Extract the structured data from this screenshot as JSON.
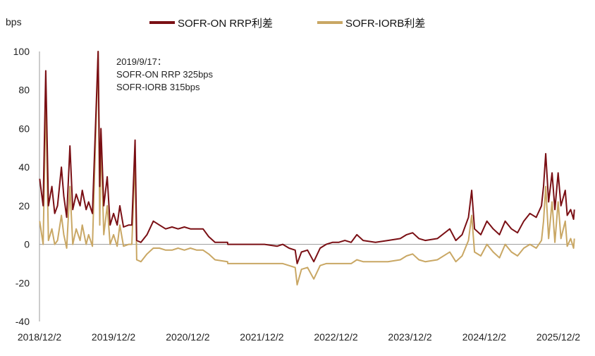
{
  "chart_data": {
    "type": "line",
    "ylabel": "bps",
    "ylim": [
      -40,
      100
    ],
    "yticks": [
      100,
      80,
      60,
      40,
      20,
      0,
      -20,
      -40
    ],
    "xlim": [
      "2018-12-02",
      "2026-02-20"
    ],
    "xticks": [
      "2018/12/2",
      "2019/12/2",
      "2020/12/2",
      "2021/12/2",
      "2022/12/2",
      "2023/12/2",
      "2024/12/2",
      "2025/12/2"
    ],
    "legend_position": "top",
    "annotation": [
      "2019/9/17：",
      "SOFR-ON RRP 325bps",
      "SOFR-IORB 315bps"
    ],
    "colors": {
      "on_rrp": "#7a0f14",
      "iorb": "#c9a764",
      "axis": "#999999"
    },
    "series": [
      {
        "name": "SOFR-ON  RRP利差",
        "key": "on_rrp",
        "points": [
          [
            "2018-12-03",
            34
          ],
          [
            "2018-12-20",
            20
          ],
          [
            "2019-01-02",
            90
          ],
          [
            "2019-01-15",
            20
          ],
          [
            "2019-02-01",
            30
          ],
          [
            "2019-02-15",
            16
          ],
          [
            "2019-03-01",
            20
          ],
          [
            "2019-03-20",
            40
          ],
          [
            "2019-04-01",
            25
          ],
          [
            "2019-04-15",
            14
          ],
          [
            "2019-05-01",
            51
          ],
          [
            "2019-05-15",
            18
          ],
          [
            "2019-06-01",
            26
          ],
          [
            "2019-06-20",
            20
          ],
          [
            "2019-07-01",
            28
          ],
          [
            "2019-07-20",
            18
          ],
          [
            "2019-08-01",
            22
          ],
          [
            "2019-08-20",
            16
          ],
          [
            "2019-09-17",
            100
          ],
          [
            "2019-09-25",
            30
          ],
          [
            "2019-10-01",
            60
          ],
          [
            "2019-10-15",
            20
          ],
          [
            "2019-11-01",
            35
          ],
          [
            "2019-11-15",
            10
          ],
          [
            "2019-12-02",
            16
          ],
          [
            "2019-12-20",
            10
          ],
          [
            "2020-01-02",
            20
          ],
          [
            "2020-01-20",
            9
          ],
          [
            "2020-02-15",
            10
          ],
          [
            "2020-03-01",
            10
          ],
          [
            "2020-03-17",
            54
          ],
          [
            "2020-03-25",
            2
          ],
          [
            "2020-04-15",
            1
          ],
          [
            "2020-05-15",
            5
          ],
          [
            "2020-06-15",
            12
          ],
          [
            "2020-07-15",
            10
          ],
          [
            "2020-08-15",
            8
          ],
          [
            "2020-09-15",
            9
          ],
          [
            "2020-10-15",
            8
          ],
          [
            "2020-11-15",
            9
          ],
          [
            "2020-12-15",
            8
          ],
          [
            "2021-01-15",
            8
          ],
          [
            "2021-02-15",
            8
          ],
          [
            "2021-03-15",
            4
          ],
          [
            "2021-04-15",
            1
          ],
          [
            "2021-06-16",
            1
          ],
          [
            "2021-06-17",
            0
          ],
          [
            "2021-09-15",
            0
          ],
          [
            "2021-12-15",
            0
          ],
          [
            "2022-02-15",
            -1
          ],
          [
            "2022-03-15",
            0
          ],
          [
            "2022-04-15",
            -2
          ],
          [
            "2022-05-15",
            -3
          ],
          [
            "2022-05-25",
            -10
          ],
          [
            "2022-06-15",
            -4
          ],
          [
            "2022-07-15",
            -3
          ],
          [
            "2022-08-15",
            -9
          ],
          [
            "2022-09-15",
            -2
          ],
          [
            "2022-10-15",
            0
          ],
          [
            "2022-11-15",
            1
          ],
          [
            "2022-12-15",
            1
          ],
          [
            "2023-01-15",
            2
          ],
          [
            "2023-02-15",
            1
          ],
          [
            "2023-03-15",
            5
          ],
          [
            "2023-04-15",
            2
          ],
          [
            "2023-06-15",
            1
          ],
          [
            "2023-08-15",
            2
          ],
          [
            "2023-10-15",
            3
          ],
          [
            "2023-11-15",
            5
          ],
          [
            "2023-12-15",
            6
          ],
          [
            "2024-01-15",
            3
          ],
          [
            "2024-02-15",
            2
          ],
          [
            "2024-04-15",
            3
          ],
          [
            "2024-06-15",
            8
          ],
          [
            "2024-07-15",
            2
          ],
          [
            "2024-08-15",
            5
          ],
          [
            "2024-09-15",
            14
          ],
          [
            "2024-10-01",
            28
          ],
          [
            "2024-10-15",
            8
          ],
          [
            "2024-11-15",
            5
          ],
          [
            "2024-12-15",
            12
          ],
          [
            "2025-01-15",
            8
          ],
          [
            "2025-02-15",
            5
          ],
          [
            "2025-03-15",
            12
          ],
          [
            "2025-04-15",
            8
          ],
          [
            "2025-05-15",
            6
          ],
          [
            "2025-06-15",
            12
          ],
          [
            "2025-07-15",
            16
          ],
          [
            "2025-08-15",
            14
          ],
          [
            "2025-09-10",
            20
          ],
          [
            "2025-09-20",
            30
          ],
          [
            "2025-10-01",
            47
          ],
          [
            "2025-10-15",
            22
          ],
          [
            "2025-11-01",
            37
          ],
          [
            "2025-11-15",
            18
          ],
          [
            "2025-12-01",
            37
          ],
          [
            "2025-12-15",
            20
          ],
          [
            "2026-01-05",
            28
          ],
          [
            "2026-01-15",
            15
          ],
          [
            "2026-02-01",
            18
          ],
          [
            "2026-02-15",
            13
          ],
          [
            "2026-02-19",
            18
          ]
        ]
      },
      {
        "name": "SOFR-IORB利差",
        "key": "iorb",
        "points": [
          [
            "2018-12-03",
            12
          ],
          [
            "2018-12-20",
            0
          ],
          [
            "2019-01-02",
            75
          ],
          [
            "2019-01-15",
            2
          ],
          [
            "2019-02-01",
            8
          ],
          [
            "2019-02-15",
            0
          ],
          [
            "2019-03-01",
            2
          ],
          [
            "2019-03-20",
            15
          ],
          [
            "2019-04-01",
            5
          ],
          [
            "2019-04-15",
            -2
          ],
          [
            "2019-05-01",
            30
          ],
          [
            "2019-05-15",
            0
          ],
          [
            "2019-06-01",
            8
          ],
          [
            "2019-06-20",
            2
          ],
          [
            "2019-07-01",
            10
          ],
          [
            "2019-07-20",
            0
          ],
          [
            "2019-08-01",
            5
          ],
          [
            "2019-08-20",
            -1
          ],
          [
            "2019-09-17",
            100
          ],
          [
            "2019-09-25",
            10
          ],
          [
            "2019-10-01",
            55
          ],
          [
            "2019-10-15",
            5
          ],
          [
            "2019-11-01",
            20
          ],
          [
            "2019-11-15",
            0
          ],
          [
            "2019-12-02",
            5
          ],
          [
            "2019-12-20",
            -1
          ],
          [
            "2020-01-02",
            10
          ],
          [
            "2020-01-20",
            -1
          ],
          [
            "2020-02-15",
            0
          ],
          [
            "2020-03-01",
            0
          ],
          [
            "2020-03-17",
            45
          ],
          [
            "2020-03-25",
            -8
          ],
          [
            "2020-04-15",
            -9
          ],
          [
            "2020-05-15",
            -5
          ],
          [
            "2020-06-15",
            -2
          ],
          [
            "2020-07-15",
            -2
          ],
          [
            "2020-08-15",
            -3
          ],
          [
            "2020-09-15",
            -3
          ],
          [
            "2020-10-15",
            -2
          ],
          [
            "2020-11-15",
            -3
          ],
          [
            "2020-12-15",
            -2
          ],
          [
            "2021-01-15",
            -3
          ],
          [
            "2021-02-15",
            -3
          ],
          [
            "2021-03-15",
            -5
          ],
          [
            "2021-04-15",
            -8
          ],
          [
            "2021-06-16",
            -9
          ],
          [
            "2021-06-17",
            -10
          ],
          [
            "2021-09-15",
            -10
          ],
          [
            "2021-12-15",
            -10
          ],
          [
            "2022-02-15",
            -10
          ],
          [
            "2022-03-15",
            -10
          ],
          [
            "2022-04-15",
            -11
          ],
          [
            "2022-05-15",
            -12
          ],
          [
            "2022-05-25",
            -21
          ],
          [
            "2022-06-15",
            -13
          ],
          [
            "2022-07-15",
            -12
          ],
          [
            "2022-08-15",
            -18
          ],
          [
            "2022-09-15",
            -11
          ],
          [
            "2022-10-15",
            -10
          ],
          [
            "2022-11-15",
            -10
          ],
          [
            "2022-12-15",
            -10
          ],
          [
            "2023-01-15",
            -10
          ],
          [
            "2023-02-15",
            -10
          ],
          [
            "2023-03-15",
            -8
          ],
          [
            "2023-04-15",
            -9
          ],
          [
            "2023-06-15",
            -9
          ],
          [
            "2023-08-15",
            -9
          ],
          [
            "2023-10-15",
            -8
          ],
          [
            "2023-11-15",
            -6
          ],
          [
            "2023-12-15",
            -5
          ],
          [
            "2024-01-15",
            -8
          ],
          [
            "2024-02-15",
            -9
          ],
          [
            "2024-04-15",
            -8
          ],
          [
            "2024-06-15",
            -4
          ],
          [
            "2024-07-15",
            -9
          ],
          [
            "2024-08-15",
            -6
          ],
          [
            "2024-09-15",
            2
          ],
          [
            "2024-10-01",
            15
          ],
          [
            "2024-10-15",
            -4
          ],
          [
            "2024-11-15",
            -6
          ],
          [
            "2024-12-15",
            0
          ],
          [
            "2025-01-15",
            -4
          ],
          [
            "2025-02-15",
            -7
          ],
          [
            "2025-03-15",
            0
          ],
          [
            "2025-04-15",
            -4
          ],
          [
            "2025-05-15",
            -6
          ],
          [
            "2025-06-15",
            -2
          ],
          [
            "2025-07-15",
            0
          ],
          [
            "2025-08-15",
            -2
          ],
          [
            "2025-09-10",
            2
          ],
          [
            "2025-09-20",
            12
          ],
          [
            "2025-10-01",
            30
          ],
          [
            "2025-10-15",
            3
          ],
          [
            "2025-11-01",
            22
          ],
          [
            "2025-11-15",
            1
          ],
          [
            "2025-12-01",
            22
          ],
          [
            "2025-12-15",
            3
          ],
          [
            "2026-01-05",
            12
          ],
          [
            "2026-01-15",
            -1
          ],
          [
            "2026-02-01",
            3
          ],
          [
            "2026-02-15",
            -2
          ],
          [
            "2026-02-19",
            3
          ]
        ]
      }
    ]
  }
}
